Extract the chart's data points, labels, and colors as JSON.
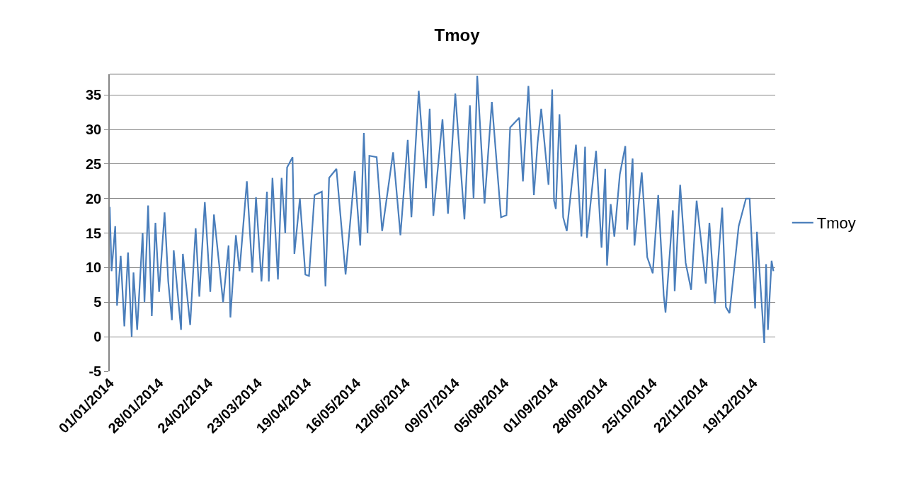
{
  "chart_data": {
    "type": "line",
    "title": "Tmoy",
    "x": [
      "2014-01-01",
      "2014-01-02",
      "2014-01-04",
      "2014-01-05",
      "2014-01-07",
      "2014-01-09",
      "2014-01-11",
      "2014-01-13",
      "2014-01-14",
      "2014-01-16",
      "2014-01-19",
      "2014-01-20",
      "2014-01-22",
      "2014-01-24",
      "2014-01-26",
      "2014-01-28",
      "2014-01-31",
      "2014-02-02",
      "2014-02-04",
      "2014-02-05",
      "2014-02-09",
      "2014-02-10",
      "2014-02-14",
      "2014-02-17",
      "2014-02-19",
      "2014-02-22",
      "2014-02-25",
      "2014-02-27",
      "2014-03-04",
      "2014-03-07",
      "2014-03-08",
      "2014-03-11",
      "2014-03-13",
      "2014-03-17",
      "2014-03-20",
      "2014-03-22",
      "2014-03-25",
      "2014-03-28",
      "2014-03-29",
      "2014-03-31",
      "2014-04-03",
      "2014-04-05",
      "2014-04-07",
      "2014-04-08",
      "2014-04-11",
      "2014-04-12",
      "2014-04-15",
      "2014-04-18",
      "2014-04-20",
      "2014-04-23",
      "2014-04-27",
      "2014-04-29",
      "2014-05-01",
      "2014-05-05",
      "2014-05-10",
      "2014-05-15",
      "2014-05-18",
      "2014-05-20",
      "2014-05-22",
      "2014-05-23",
      "2014-05-27",
      "2014-05-30",
      "2014-06-05",
      "2014-06-09",
      "2014-06-13",
      "2014-06-15",
      "2014-06-19",
      "2014-06-23",
      "2014-06-25",
      "2014-06-27",
      "2014-07-02",
      "2014-07-05",
      "2014-07-09",
      "2014-07-14",
      "2014-07-17",
      "2014-07-19",
      "2014-07-21",
      "2014-07-25",
      "2014-07-29",
      "2014-08-03",
      "2014-08-06",
      "2014-08-08",
      "2014-08-13",
      "2014-08-15",
      "2014-08-18",
      "2014-08-21",
      "2014-08-23",
      "2014-08-25",
      "2014-08-29",
      "2014-08-31",
      "2014-09-01",
      "2014-09-02",
      "2014-09-04",
      "2014-09-06",
      "2014-09-08",
      "2014-09-13",
      "2014-09-16",
      "2014-09-18",
      "2014-09-19",
      "2014-09-24",
      "2014-09-27",
      "2014-09-29",
      "2014-09-30",
      "2014-10-02",
      "2014-10-04",
      "2014-10-07",
      "2014-10-10",
      "2014-10-11",
      "2014-10-14",
      "2014-10-15",
      "2014-10-19",
      "2014-10-22",
      "2014-10-25",
      "2014-10-28",
      "2014-10-31",
      "2014-11-01",
      "2014-11-05",
      "2014-11-06",
      "2014-11-09",
      "2014-11-12",
      "2014-11-15",
      "2014-11-18",
      "2014-11-23",
      "2014-11-25",
      "2014-11-28",
      "2014-12-02",
      "2014-12-04",
      "2014-12-06",
      "2014-12-11",
      "2014-12-15",
      "2014-12-17",
      "2014-12-20",
      "2014-12-21",
      "2014-12-25",
      "2014-12-26",
      "2014-12-27",
      "2014-12-29",
      "2014-12-30"
    ],
    "series": [
      {
        "name": "Tmoy",
        "color": "#4a7ebb",
        "values": [
          18.8,
          9.5,
          16,
          4.5,
          11.7,
          1.5,
          12.2,
          0,
          9.3,
          1,
          15,
          5,
          19,
          3,
          16.5,
          6.5,
          18,
          8,
          2.4,
          12.5,
          1,
          12,
          1.7,
          15.7,
          5.8,
          19.5,
          6.5,
          17.7,
          5,
          13.2,
          2.8,
          14.7,
          9.5,
          22.5,
          9.3,
          20.2,
          8,
          21,
          8,
          23,
          8.3,
          23,
          15,
          24.5,
          26,
          12,
          20,
          9,
          8.8,
          20.5,
          21,
          7.3,
          23,
          24.3,
          9,
          24,
          13.2,
          29.5,
          15,
          26.2,
          26,
          15.3,
          26.7,
          14.7,
          28.5,
          17.3,
          35.6,
          21.5,
          33,
          17.5,
          31.5,
          17.8,
          35.2,
          17,
          33.5,
          20,
          37.8,
          19.3,
          34,
          17.3,
          17.6,
          30.3,
          31.7,
          22.5,
          36.3,
          20.5,
          28,
          33,
          22,
          35.8,
          19.7,
          18.5,
          32.2,
          17.3,
          15.3,
          27.8,
          14.5,
          27.5,
          14.3,
          26.9,
          12.9,
          24.3,
          10.3,
          19.2,
          14.5,
          23.5,
          27.6,
          15.5,
          25.8,
          13.2,
          23.8,
          11.5,
          9.2,
          20.5,
          6,
          3.5,
          18.3,
          6.6,
          22,
          10.7,
          6.8,
          19.7,
          7.7,
          16.5,
          4.8,
          18.7,
          4.3,
          3.4,
          16,
          20,
          20,
          4.1,
          15.2,
          -0.9,
          10.5,
          1,
          11,
          9.5
        ]
      }
    ],
    "xlim": [
      "2014-01-01",
      "2014-12-31"
    ],
    "xticks": [
      {
        "value": "2014-01-01",
        "label": "01/01/2014"
      },
      {
        "value": "2014-01-28",
        "label": "28/01/2014"
      },
      {
        "value": "2014-02-24",
        "label": "24/02/2014"
      },
      {
        "value": "2014-03-23",
        "label": "23/03/2014"
      },
      {
        "value": "2014-04-19",
        "label": "19/04/2014"
      },
      {
        "value": "2014-05-16",
        "label": "16/05/2014"
      },
      {
        "value": "2014-06-12",
        "label": "12/06/2014"
      },
      {
        "value": "2014-07-09",
        "label": "09/07/2014"
      },
      {
        "value": "2014-08-05",
        "label": "05/08/2014"
      },
      {
        "value": "2014-09-01",
        "label": "01/09/2014"
      },
      {
        "value": "2014-09-28",
        "label": "28/09/2014"
      },
      {
        "value": "2014-10-25",
        "label": "25/10/2014"
      },
      {
        "value": "2014-11-22",
        "label": "22/11/2014"
      },
      {
        "value": "2014-12-19",
        "label": "19/12/2014"
      }
    ],
    "ylim": [
      -5,
      38
    ],
    "yticks": [
      -5,
      0,
      5,
      10,
      15,
      20,
      25,
      30,
      35
    ],
    "grid": "y",
    "legend": "right",
    "marker": "none",
    "line_style": "solid"
  }
}
